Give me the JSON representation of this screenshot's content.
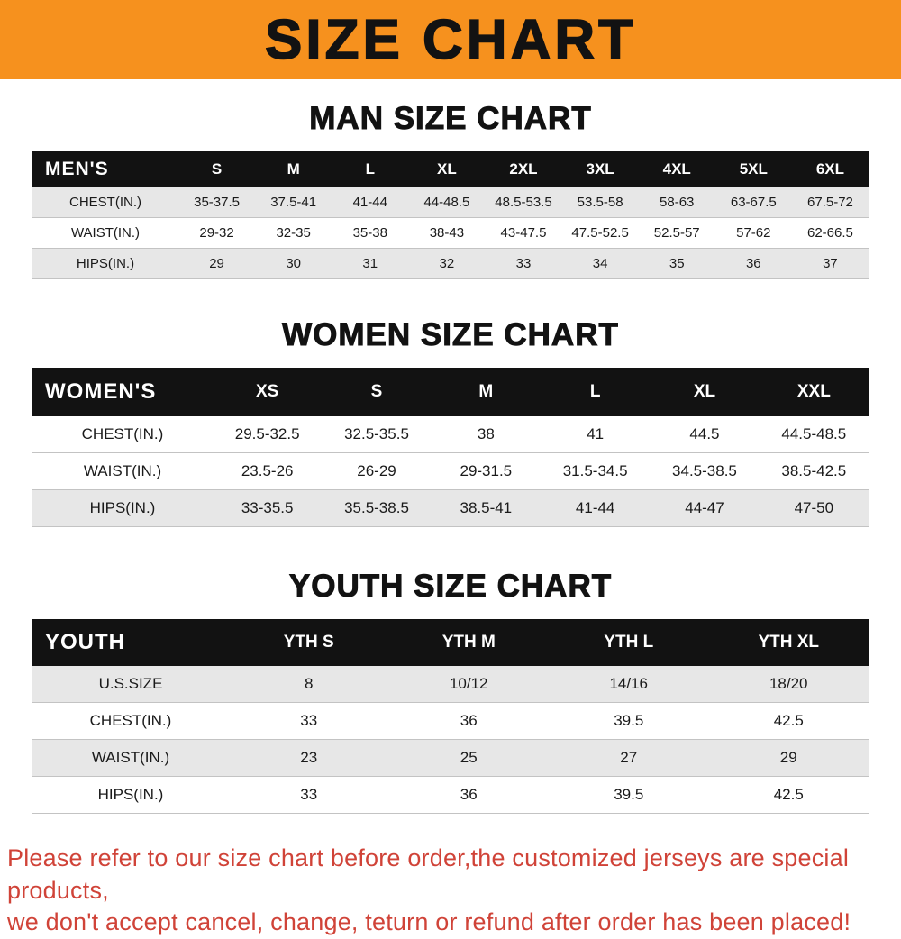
{
  "banner": {
    "title": "SIZE CHART",
    "bg_color": "#F6911E",
    "text_color": "#121212"
  },
  "chart_data": [
    {
      "type": "table",
      "title": "MAN SIZE CHART",
      "corner_label": "MEN'S",
      "columns": [
        "S",
        "M",
        "L",
        "XL",
        "2XL",
        "3XL",
        "4XL",
        "5XL",
        "6XL"
      ],
      "rows": [
        {
          "label": "CHEST(IN.)",
          "values": [
            "35-37.5",
            "37.5-41",
            "41-44",
            "44-48.5",
            "48.5-53.5",
            "53.5-58",
            "58-63",
            "63-67.5",
            "67.5-72"
          ]
        },
        {
          "label": "WAIST(IN.)",
          "values": [
            "29-32",
            "32-35",
            "35-38",
            "38-43",
            "43-47.5",
            "47.5-52.5",
            "52.5-57",
            "57-62",
            "62-66.5"
          ]
        },
        {
          "label": "HIPS(IN.)",
          "values": [
            "29",
            "30",
            "31",
            "32",
            "33",
            "34",
            "35",
            "36",
            "37"
          ]
        }
      ],
      "row_shading": [
        "gray",
        "white",
        "gray"
      ]
    },
    {
      "type": "table",
      "title": "WOMEN SIZE CHART",
      "corner_label": "WOMEN'S",
      "columns": [
        "XS",
        "S",
        "M",
        "L",
        "XL",
        "XXL"
      ],
      "rows": [
        {
          "label": "CHEST(IN.)",
          "values": [
            "29.5-32.5",
            "32.5-35.5",
            "38",
            "41",
            "44.5",
            "44.5-48.5"
          ]
        },
        {
          "label": "WAIST(IN.)",
          "values": [
            "23.5-26",
            "26-29",
            "29-31.5",
            "31.5-34.5",
            "34.5-38.5",
            "38.5-42.5"
          ]
        },
        {
          "label": "HIPS(IN.)",
          "values": [
            "33-35.5",
            "35.5-38.5",
            "38.5-41",
            "41-44",
            "44-47",
            "47-50"
          ]
        }
      ],
      "row_shading": [
        "white",
        "white",
        "gray"
      ]
    },
    {
      "type": "table",
      "title": "YOUTH SIZE CHART",
      "corner_label": "YOUTH",
      "columns": [
        "YTH S",
        "YTH M",
        "YTH L",
        "YTH XL"
      ],
      "rows": [
        {
          "label": "U.S.SIZE",
          "values": [
            "8",
            "10/12",
            "14/16",
            "18/20"
          ]
        },
        {
          "label": "CHEST(IN.)",
          "values": [
            "33",
            "36",
            "39.5",
            "42.5"
          ]
        },
        {
          "label": "WAIST(IN.)",
          "values": [
            "23",
            "25",
            "27",
            "29"
          ]
        },
        {
          "label": "HIPS(IN.)",
          "values": [
            "33",
            "36",
            "39.5",
            "42.5"
          ]
        }
      ],
      "row_shading": [
        "gray",
        "white",
        "gray",
        "white"
      ]
    }
  ],
  "footer": {
    "line1": "Please refer to our size chart before order,the customized jerseys are special products,",
    "line2": "we don't accept cancel, change, teturn or refund after order has been placed!",
    "text_color": "#d04338"
  }
}
